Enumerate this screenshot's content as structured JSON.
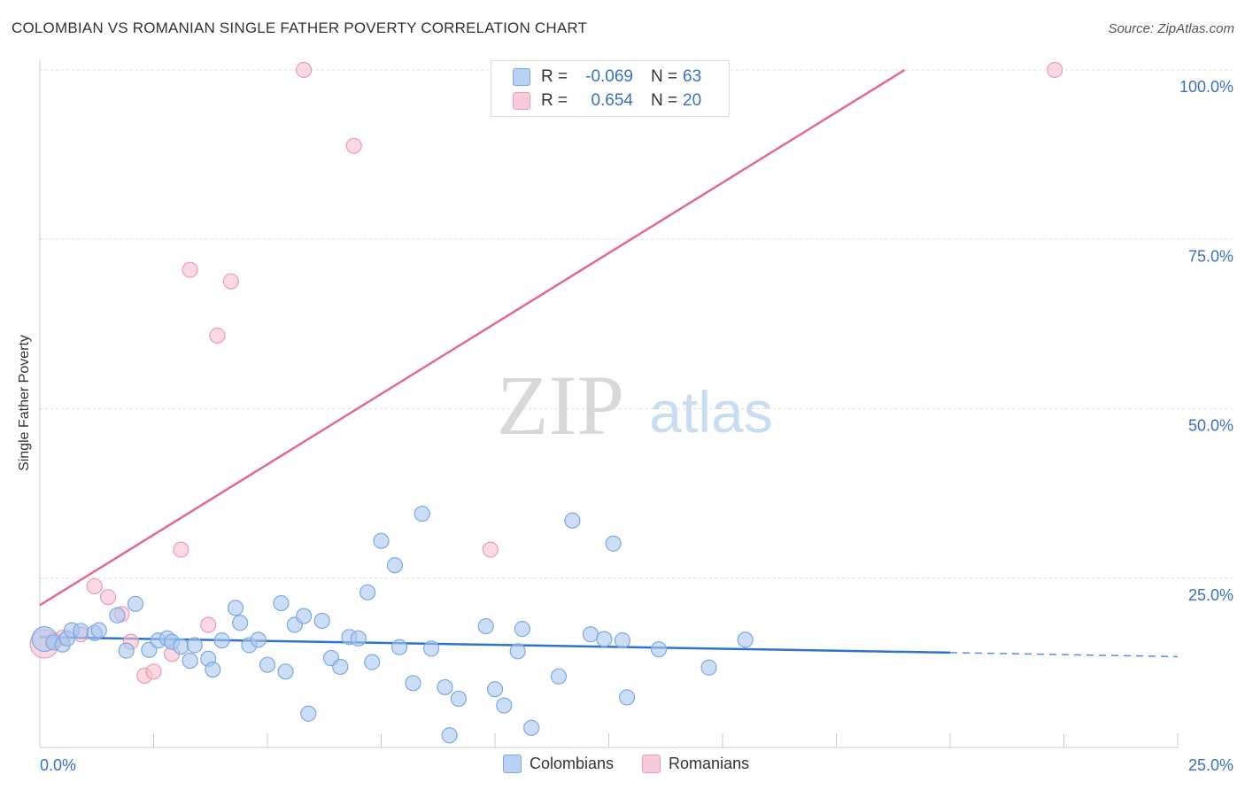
{
  "header": {
    "title": "COLOMBIAN VS ROMANIAN SINGLE FATHER POVERTY CORRELATION CHART",
    "source": "Source: ZipAtlas.com"
  },
  "watermark": {
    "zip": "ZIP",
    "atlas": "atlas"
  },
  "legend": {
    "rows": [
      {
        "r_label": "R =",
        "r_value": "-0.069",
        "n_label": "N =",
        "n_value": "63"
      },
      {
        "r_label": "R =",
        "r_value": "0.654",
        "n_label": "N =",
        "n_value": "20"
      }
    ]
  },
  "bottom_legend": [
    "Colombians",
    "Romanians"
  ],
  "colors": {
    "colombians_fill": "#aac8f0",
    "colombians_stroke": "#7ea8e0",
    "colombians_line": "#2f72d0",
    "romanians_fill": "#f7c0d0",
    "romanians_stroke": "#eb9cb4",
    "romanians_line": "#e06a92",
    "tick_label": "#3a6fc4",
    "grid": "#dddddd"
  },
  "chart_data": {
    "type": "scatter",
    "title": "COLOMBIAN VS ROMANIAN SINGLE FATHER POVERTY CORRELATION CHART",
    "xlabel": "",
    "ylabel": "Single Father Poverty",
    "xlim": [
      0,
      25
    ],
    "ylim": [
      0,
      100
    ],
    "x_tick_labels": [
      "0.0%",
      "25.0%"
    ],
    "y_ticks": [
      25,
      50,
      75,
      100
    ],
    "y_tick_labels": [
      "25.0%",
      "50.0%",
      "75.0%",
      "100.0%"
    ],
    "grid": true,
    "series": [
      {
        "name": "Colombians",
        "R": -0.069,
        "N": 63,
        "trend": {
          "x0": 0,
          "y0": 16.3,
          "x1": 20,
          "y1": 14.0,
          "dashed_to_x": 25,
          "dashed_to_y": 13.4
        },
        "points": [
          [
            0.1,
            16.0
          ],
          [
            0.3,
            15.5
          ],
          [
            0.5,
            15.2
          ],
          [
            0.6,
            16.1
          ],
          [
            0.7,
            17.3
          ],
          [
            0.9,
            17.2
          ],
          [
            1.2,
            16.9
          ],
          [
            1.3,
            17.3
          ],
          [
            1.7,
            19.5
          ],
          [
            1.9,
            14.3
          ],
          [
            2.1,
            21.2
          ],
          [
            2.4,
            14.4
          ],
          [
            2.6,
            15.8
          ],
          [
            2.8,
            16.1
          ],
          [
            2.9,
            15.6
          ],
          [
            3.1,
            14.9
          ],
          [
            3.3,
            12.8
          ],
          [
            3.4,
            15.1
          ],
          [
            3.7,
            13.1
          ],
          [
            3.8,
            11.5
          ],
          [
            4.0,
            15.8
          ],
          [
            4.3,
            20.6
          ],
          [
            4.4,
            18.4
          ],
          [
            4.6,
            15.1
          ],
          [
            4.8,
            15.9
          ],
          [
            5.0,
            12.2
          ],
          [
            5.3,
            21.3
          ],
          [
            5.4,
            11.2
          ],
          [
            5.6,
            18.1
          ],
          [
            5.8,
            19.4
          ],
          [
            5.9,
            5.0
          ],
          [
            6.2,
            18.7
          ],
          [
            6.4,
            13.2
          ],
          [
            6.6,
            11.9
          ],
          [
            6.8,
            16.3
          ],
          [
            7.0,
            16.1
          ],
          [
            7.2,
            22.9
          ],
          [
            7.3,
            12.6
          ],
          [
            7.5,
            30.5
          ],
          [
            7.8,
            26.9
          ],
          [
            7.9,
            14.8
          ],
          [
            8.2,
            9.5
          ],
          [
            8.4,
            34.5
          ],
          [
            8.6,
            14.6
          ],
          [
            8.9,
            8.9
          ],
          [
            9.0,
            1.8
          ],
          [
            9.2,
            7.2
          ],
          [
            9.8,
            17.9
          ],
          [
            10.0,
            8.6
          ],
          [
            10.2,
            6.2
          ],
          [
            10.5,
            14.2
          ],
          [
            10.6,
            17.5
          ],
          [
            10.8,
            2.9
          ],
          [
            11.4,
            10.5
          ],
          [
            11.7,
            33.5
          ],
          [
            12.1,
            16.7
          ],
          [
            12.4,
            16.0
          ],
          [
            12.6,
            30.1
          ],
          [
            12.8,
            15.8
          ],
          [
            12.9,
            7.4
          ],
          [
            13.6,
            14.5
          ],
          [
            14.7,
            11.8
          ],
          [
            15.5,
            15.9
          ]
        ]
      },
      {
        "name": "Romanians",
        "R": 0.654,
        "N": 20,
        "trend": {
          "x0": 0,
          "y0": 21.0,
          "x1": 19.0,
          "y1": 100.0
        },
        "points": [
          [
            0.1,
            15.3
          ],
          [
            0.5,
            16.2
          ],
          [
            0.9,
            16.7
          ],
          [
            1.2,
            23.8
          ],
          [
            1.5,
            22.2
          ],
          [
            1.8,
            19.7
          ],
          [
            2.0,
            15.6
          ],
          [
            2.3,
            10.6
          ],
          [
            2.5,
            11.2
          ],
          [
            2.9,
            13.8
          ],
          [
            3.1,
            29.2
          ],
          [
            3.3,
            70.5
          ],
          [
            3.7,
            18.1
          ],
          [
            3.9,
            60.8
          ],
          [
            4.2,
            68.8
          ],
          [
            5.8,
            100.0
          ],
          [
            6.9,
            88.8
          ],
          [
            9.9,
            29.2
          ],
          [
            22.3,
            100.0
          ],
          [
            0.3,
            15.8
          ]
        ]
      }
    ]
  }
}
